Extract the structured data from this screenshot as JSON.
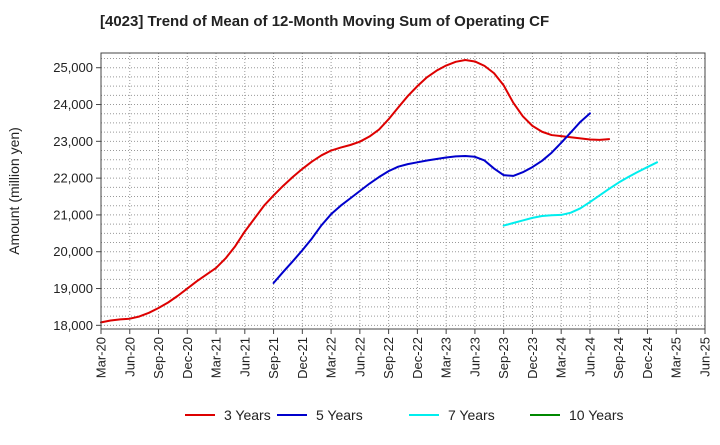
{
  "chart_data": {
    "type": "line",
    "title": "[4023]  Trend of Mean of 12-Month Moving Sum of Operating CF",
    "xlabel": "",
    "ylabel": "Amount (million yen)",
    "ylim": [
      17900,
      25400
    ],
    "grid": true,
    "legend_position": "bottom",
    "x_tick_labels": [
      "Mar-20",
      "Jun-20",
      "Sep-20",
      "Dec-20",
      "Mar-21",
      "Jun-21",
      "Sep-21",
      "Dec-21",
      "Mar-22",
      "Jun-22",
      "Sep-22",
      "Dec-22",
      "Mar-23",
      "Jun-23",
      "Sep-23",
      "Dec-23",
      "Mar-24",
      "Jun-24",
      "Sep-24",
      "Dec-24",
      "Mar-25",
      "Jun-25"
    ],
    "y_ticks": [
      18000,
      19000,
      20000,
      21000,
      22000,
      23000,
      24000,
      25000
    ],
    "y_tick_labels": [
      "18,000",
      "19,000",
      "20,000",
      "21,000",
      "22,000",
      "23,000",
      "24,000",
      "25,000"
    ],
    "series": [
      {
        "name": "3 Years",
        "color": "#dd0000",
        "start_index": 0,
        "values": [
          18080,
          18130,
          18160,
          18180,
          18240,
          18340,
          18470,
          18620,
          18800,
          19000,
          19200,
          19380,
          19560,
          19820,
          20150,
          20550,
          20900,
          21250,
          21530,
          21790,
          22030,
          22250,
          22450,
          22620,
          22750,
          22830,
          22900,
          22990,
          23130,
          23320,
          23600,
          23920,
          24230,
          24500,
          24740,
          24920,
          25060,
          25160,
          25210,
          25170,
          25050,
          24850,
          24520,
          24050,
          23680,
          23420,
          23260,
          23170,
          23140,
          23110,
          23080,
          23050,
          23040,
          23060
        ]
      },
      {
        "name": "5 Years",
        "color": "#0000cc",
        "start_index": 18,
        "values": [
          19150,
          19450,
          19740,
          20040,
          20360,
          20720,
          21020,
          21250,
          21450,
          21650,
          21850,
          22030,
          22190,
          22310,
          22380,
          22430,
          22480,
          22520,
          22560,
          22590,
          22600,
          22580,
          22480,
          22260,
          22080,
          22060,
          22160,
          22300,
          22470,
          22690,
          22960,
          23240,
          23530,
          23760
        ]
      },
      {
        "name": "7 Years",
        "color": "#00eeee",
        "start_index": 42,
        "values": [
          20710,
          20780,
          20850,
          20920,
          20970,
          20990,
          21000,
          21060,
          21180,
          21350,
          21530,
          21710,
          21880,
          22030,
          22170,
          22300,
          22430
        ]
      },
      {
        "name": "10 Years",
        "color": "#008800",
        "start_index": 0,
        "values": []
      }
    ]
  }
}
